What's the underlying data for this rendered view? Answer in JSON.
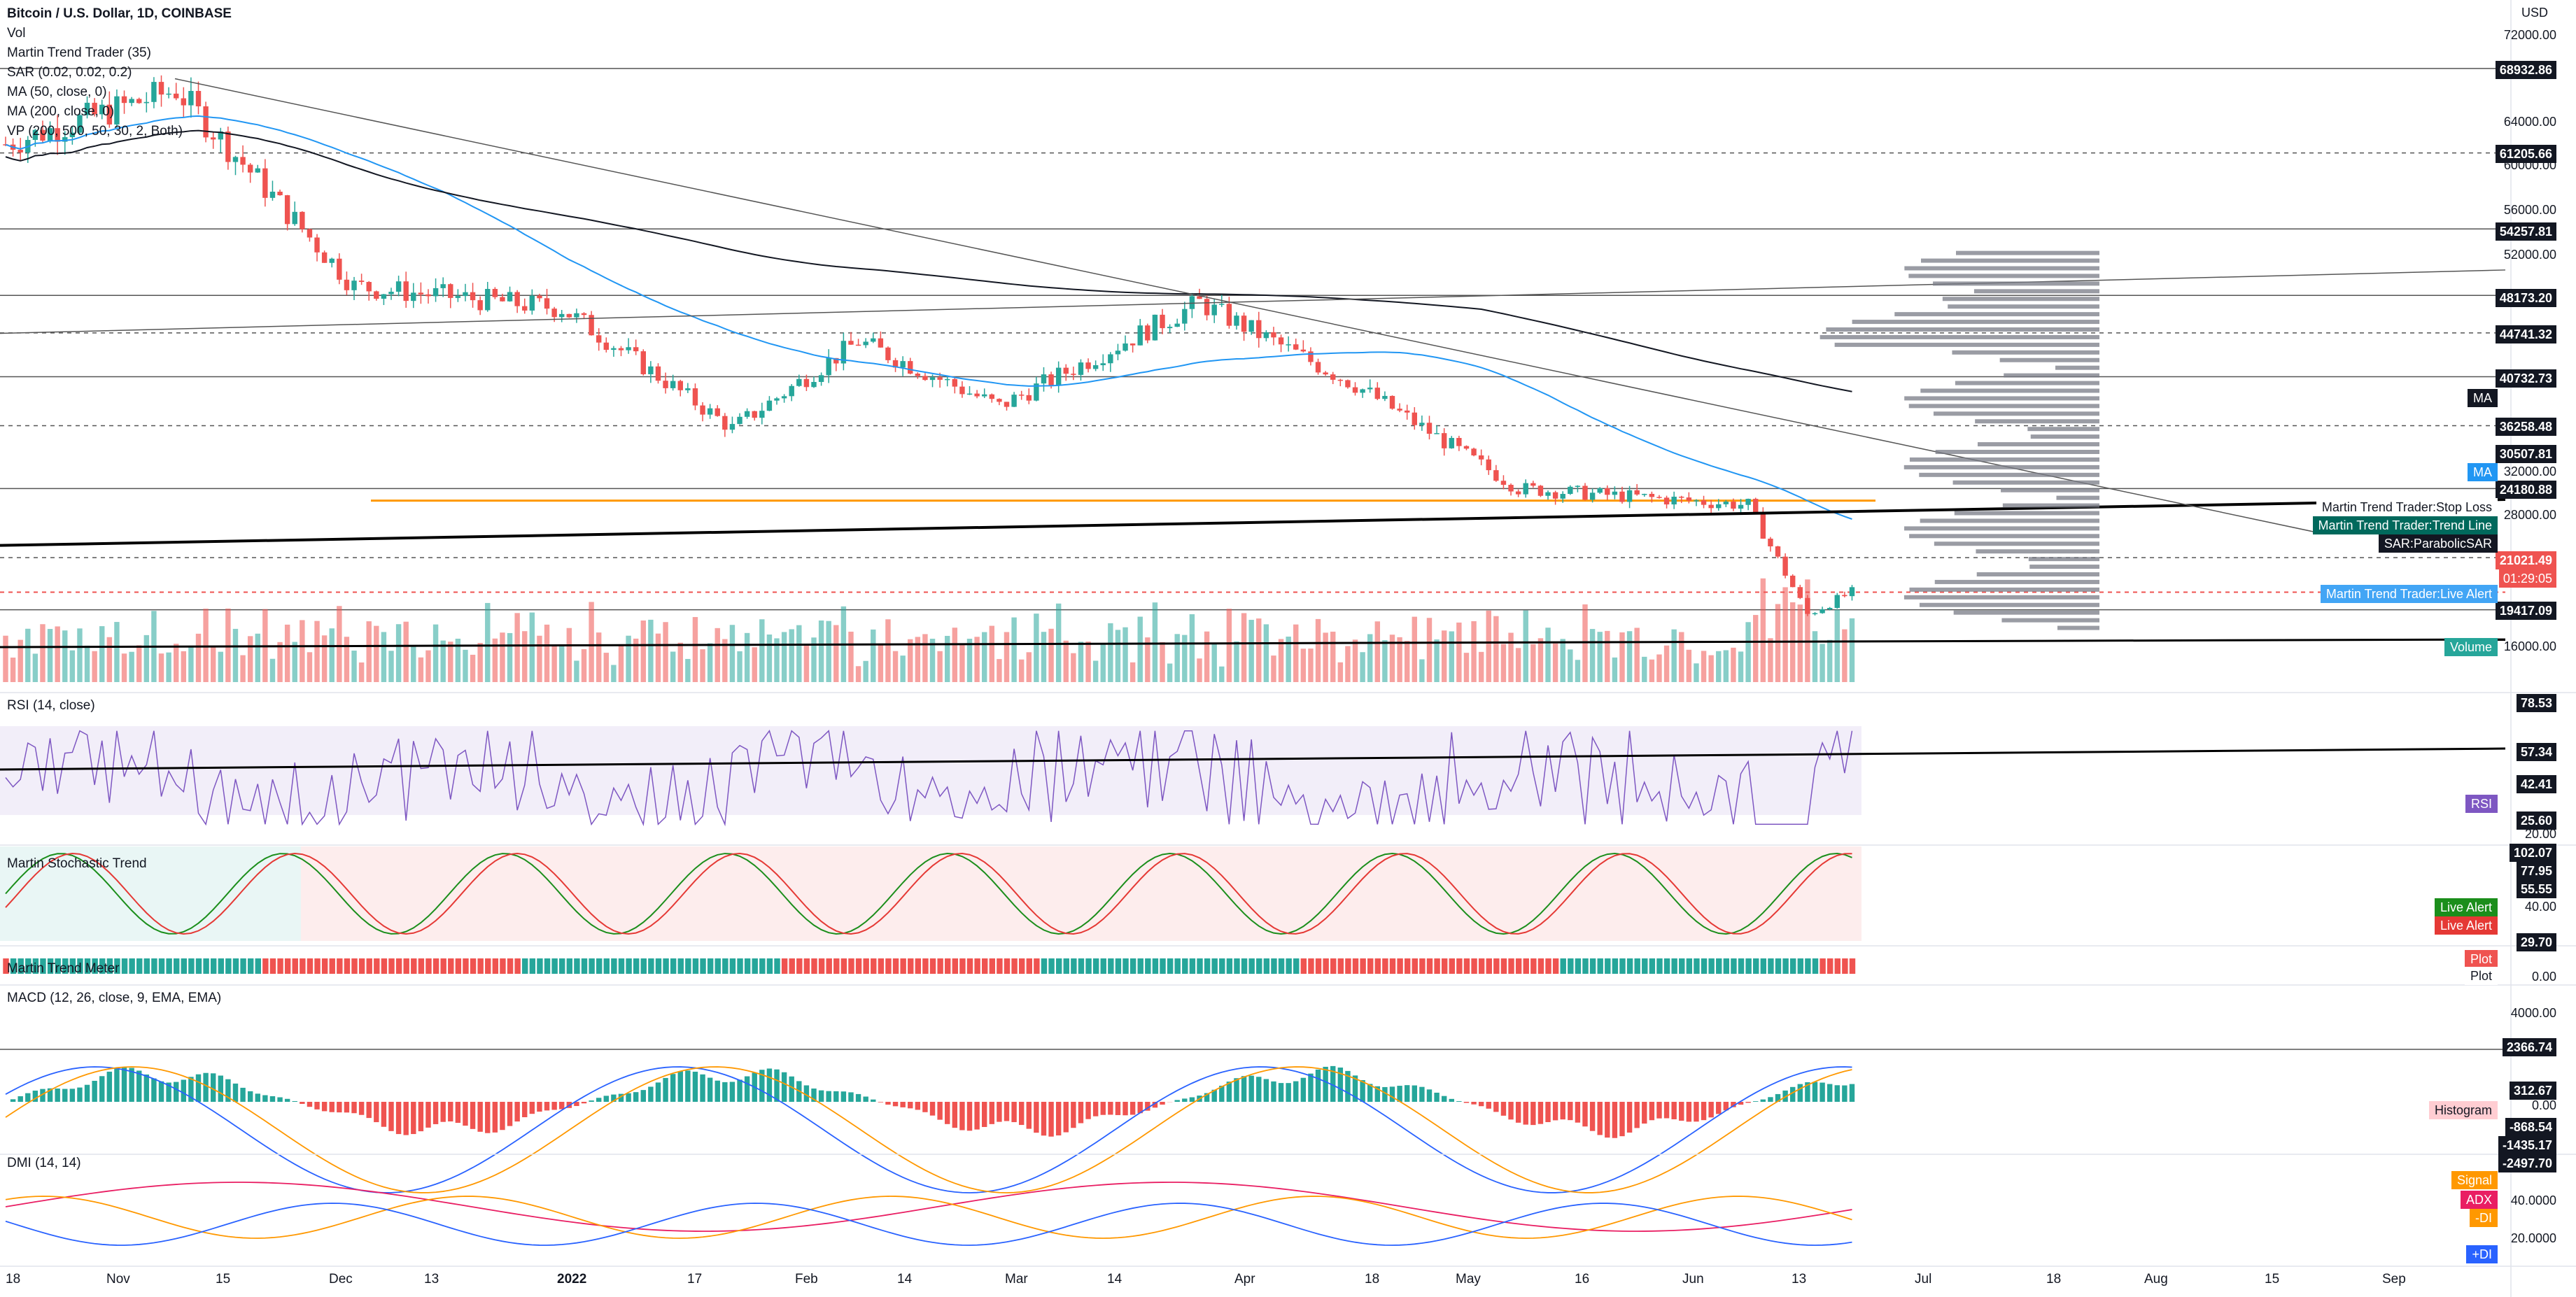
{
  "header": {
    "symbol": "Bitcoin / U.S. Dollar, 1D, COINBASE",
    "vol": "Vol",
    "indicators": [
      "Martin Trend Trader (35)",
      "SAR (0.02, 0.02, 0.2)",
      "MA (50, close, 0)",
      "MA (200, close, 0)",
      "VP (200, 500, 50, 30, 2, Both)"
    ]
  },
  "currency": "USD",
  "panes": {
    "rsi": "RSI (14, close)",
    "stoch": "Martin Stochastic Trend",
    "meter": "Martin Trend Meter",
    "macd": "MACD (12, 26, close, 9, EMA, EMA)",
    "dmi": "DMI (14, 14)"
  },
  "price_axis": [
    "72000.00",
    "64000.00",
    "60000.00",
    "56000.00",
    "52000.00",
    "32000.00",
    "28000.00",
    "16000.00"
  ],
  "price_levels": [
    "68932.86",
    "61205.66",
    "54257.81",
    "48173.20",
    "44741.32",
    "40732.73",
    "36258.48",
    "30507.81",
    "24180.88",
    "21021.49",
    "19417.09"
  ],
  "countdown": "01:29:05",
  "right_tags": {
    "ma": "MA",
    "stop_loss": "Martin Trend Trader:Stop Loss",
    "trend_line": "Martin Trend Trader:Trend Line",
    "sar": "SAR:ParabolicSAR",
    "live_alert": "Martin Trend Trader:Live Alert",
    "volume": "Volume"
  },
  "rsi_levels": [
    "78.53",
    "57.34",
    "42.41",
    "25.60"
  ],
  "rsi_tag": "RSI",
  "rsi_axis": [
    "20.00"
  ],
  "stoch_levels": [
    "102.07",
    "77.95",
    "55.55",
    "29.70"
  ],
  "stoch_axis": [
    "40.00"
  ],
  "stoch_tags": [
    "Live Alert",
    "Live Alert"
  ],
  "meter_tags": [
    "Plot",
    "Plot"
  ],
  "meter_axis": [
    "0.00"
  ],
  "macd_levels": [
    "2366.74",
    "312.67",
    "-868.54",
    "-1435.17",
    "-2497.70"
  ],
  "macd_axis": [
    "4000.00",
    "0.00"
  ],
  "macd_tags": [
    "Histogram",
    "Signal"
  ],
  "dmi_tags": [
    "ADX",
    "-DI",
    "+DI"
  ],
  "dmi_axis": [
    "40.0000",
    "20.0000"
  ],
  "time_axis": [
    "18",
    "Nov",
    "15",
    "Dec",
    "13",
    "2022",
    "17",
    "Feb",
    "14",
    "Mar",
    "14",
    "Apr",
    "18",
    "May",
    "16",
    "Jun",
    "13",
    "Jul",
    "18",
    "Aug",
    "15",
    "Sep"
  ],
  "colors": {
    "up": "#26a69a",
    "down": "#ef5350",
    "ma50": "#2196f3",
    "ma200": "#131722",
    "rsi": "#7e57c2",
    "orange": "#ff9800"
  },
  "chart_data": {
    "type": "candlestick",
    "title": "Bitcoin / U.S. Dollar, 1D, COINBASE",
    "x_range": [
      "2021-10-18",
      "2022-09-05"
    ],
    "ylim": [
      16000,
      72000
    ],
    "close_approx": [
      {
        "date": "2021-10-18",
        "close": 62000
      },
      {
        "date": "2021-11-10",
        "close": 67000
      },
      {
        "date": "2021-12-04",
        "close": 49000
      },
      {
        "date": "2022-01-01",
        "close": 47000
      },
      {
        "date": "2022-01-24",
        "close": 36000
      },
      {
        "date": "2022-02-10",
        "close": 44000
      },
      {
        "date": "2022-03-01",
        "close": 38000
      },
      {
        "date": "2022-03-28",
        "close": 47500
      },
      {
        "date": "2022-04-18",
        "close": 40000
      },
      {
        "date": "2022-05-10",
        "close": 30500
      },
      {
        "date": "2022-06-10",
        "close": 29000
      },
      {
        "date": "2022-06-18",
        "close": 19000
      },
      {
        "date": "2022-06-24",
        "close": 21021
      }
    ]
  }
}
